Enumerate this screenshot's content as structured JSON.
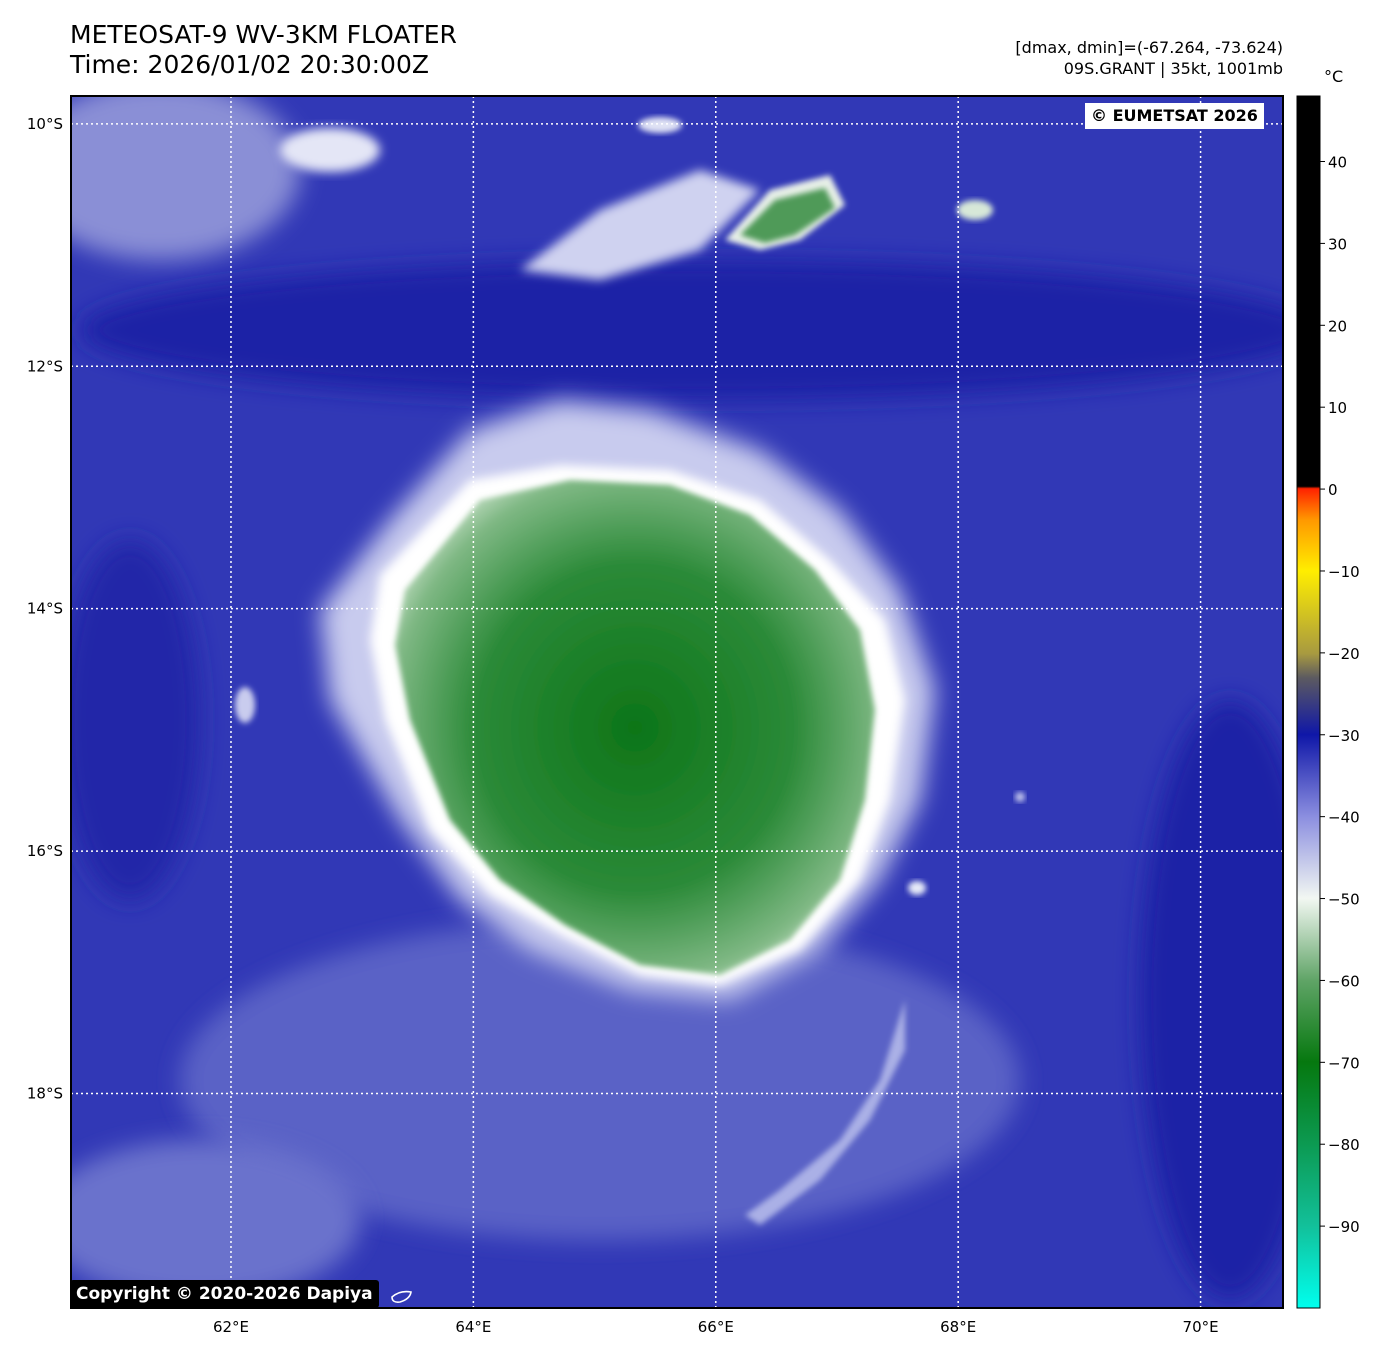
{
  "header": {
    "title_line1": "METEOSAT-9 WV-3KM FLOATER",
    "title_line2": "Time: 2026/01/02 20:30:00Z",
    "dmax_dmin": "[dmax, dmin]=(-67.264, -73.624)",
    "storm_info": "09S.GRANT | 35kt, 1001mb"
  },
  "map": {
    "lon_range": [
      60.68,
      70.68
    ],
    "lat_range": [
      -19.77,
      -9.77
    ],
    "lon_ticks": [
      {
        "value": 62,
        "label": "62°E"
      },
      {
        "value": 64,
        "label": "64°E"
      },
      {
        "value": 66,
        "label": "66°E"
      },
      {
        "value": 68,
        "label": "68°E"
      },
      {
        "value": 70,
        "label": "70°E"
      }
    ],
    "lat_ticks": [
      {
        "value": -10,
        "label": "10°S"
      },
      {
        "value": -12,
        "label": "12°S"
      },
      {
        "value": -14,
        "label": "14°S"
      },
      {
        "value": -16,
        "label": "16°S"
      },
      {
        "value": -18,
        "label": "18°S"
      }
    ],
    "colors": {
      "background": "#3238b8",
      "cloud_edge": "#ffffff",
      "cloud_core": "#1f7f2a"
    }
  },
  "colorbar": {
    "unit": "°C",
    "range": [
      -100,
      48
    ],
    "ticks": [
      {
        "value": 40,
        "label": "40"
      },
      {
        "value": 30,
        "label": "30"
      },
      {
        "value": 20,
        "label": "20"
      },
      {
        "value": 10,
        "label": "10"
      },
      {
        "value": 0,
        "label": "0"
      },
      {
        "value": -10,
        "label": "−10"
      },
      {
        "value": -20,
        "label": "−20"
      },
      {
        "value": -30,
        "label": "−30"
      },
      {
        "value": -40,
        "label": "−40"
      },
      {
        "value": -50,
        "label": "−50"
      },
      {
        "value": -60,
        "label": "−60"
      },
      {
        "value": -70,
        "label": "−70"
      },
      {
        "value": -80,
        "label": "−80"
      },
      {
        "value": -90,
        "label": "−90"
      }
    ]
  },
  "copyright": {
    "eumetsat": "© EUMETSAT 2026",
    "dapiya": "Copyright © 2020-2026 Dapiya"
  }
}
